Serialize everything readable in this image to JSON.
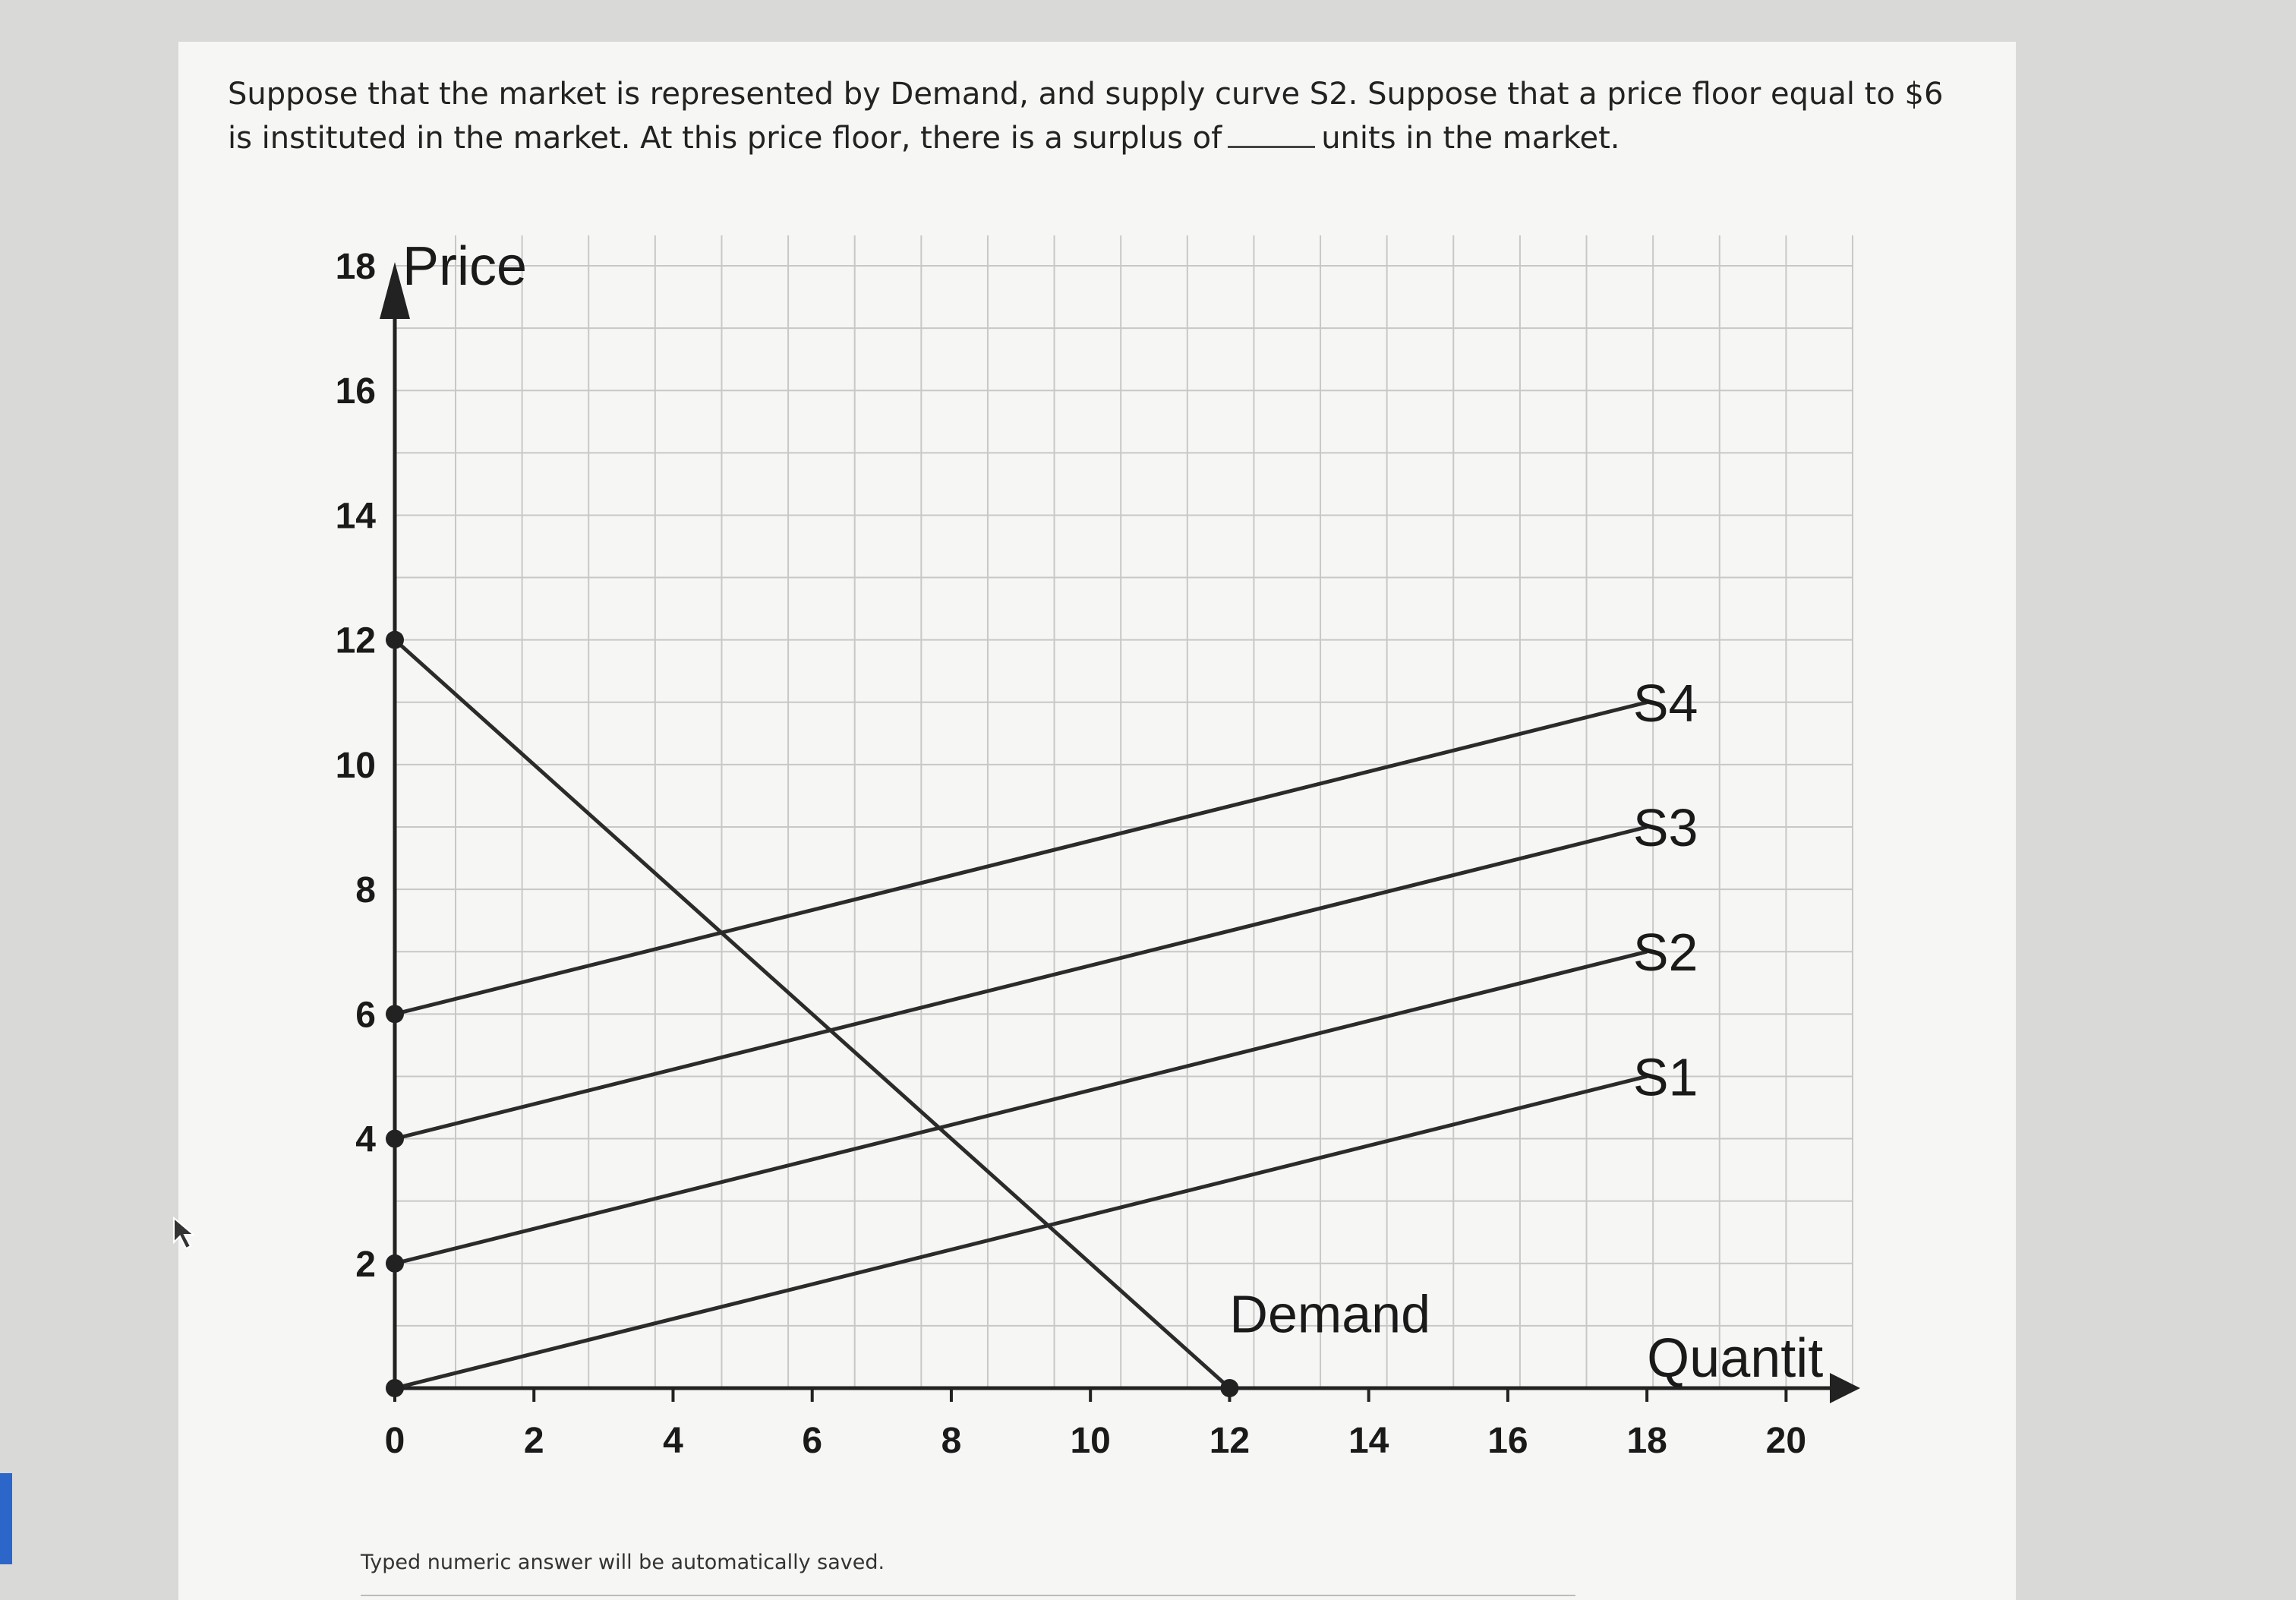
{
  "question": {
    "part1": "Suppose that the market is represented by Demand, and supply curve S2. Suppose that a price floor equal to $6 is instituted in the market. At this price floor, there is a surplus of",
    "part2": "units in the market."
  },
  "footer": {
    "autosave_note": "Typed numeric answer will be automatically saved."
  },
  "chart_data": {
    "type": "line",
    "xlabel": "Quantit",
    "ylabel": "Price",
    "xlim": [
      0,
      21
    ],
    "ylim": [
      0,
      18
    ],
    "x_ticks": [
      "0",
      "2",
      "4",
      "6",
      "8",
      "10",
      "12",
      "14",
      "16",
      "18",
      "20"
    ],
    "x_tick_values": [
      0,
      2,
      4,
      6,
      8,
      10,
      12,
      14,
      16,
      18,
      20
    ],
    "y_ticks": [
      "2",
      "4",
      "6",
      "8",
      "10",
      "12",
      "14",
      "16",
      "18"
    ],
    "y_tick_values": [
      2,
      4,
      6,
      8,
      10,
      12,
      14,
      16,
      18
    ],
    "grid": true,
    "series": [
      {
        "name": "Demand",
        "x": [
          0,
          12
        ],
        "y": [
          12,
          0
        ],
        "label_at": [
          12.0,
          1.2
        ]
      },
      {
        "name": "S1",
        "x": [
          0,
          18
        ],
        "y": [
          0,
          5
        ],
        "label_at": [
          17.8,
          5.0
        ]
      },
      {
        "name": "S2",
        "x": [
          0,
          18
        ],
        "y": [
          2,
          7
        ],
        "label_at": [
          17.8,
          7.0
        ]
      },
      {
        "name": "S3",
        "x": [
          0,
          18
        ],
        "y": [
          4,
          9
        ],
        "label_at": [
          17.8,
          9.0
        ]
      },
      {
        "name": "S4",
        "x": [
          0,
          18
        ],
        "y": [
          6,
          11
        ],
        "label_at": [
          17.8,
          11.0
        ]
      }
    ],
    "endpoint_markers": [
      [
        0,
        12
      ],
      [
        0,
        6
      ],
      [
        0,
        4
      ],
      [
        0,
        2
      ],
      [
        0,
        0
      ],
      [
        12,
        0
      ]
    ],
    "line_color": "#2b2b2b",
    "grid_color": "#c8c8c8"
  }
}
